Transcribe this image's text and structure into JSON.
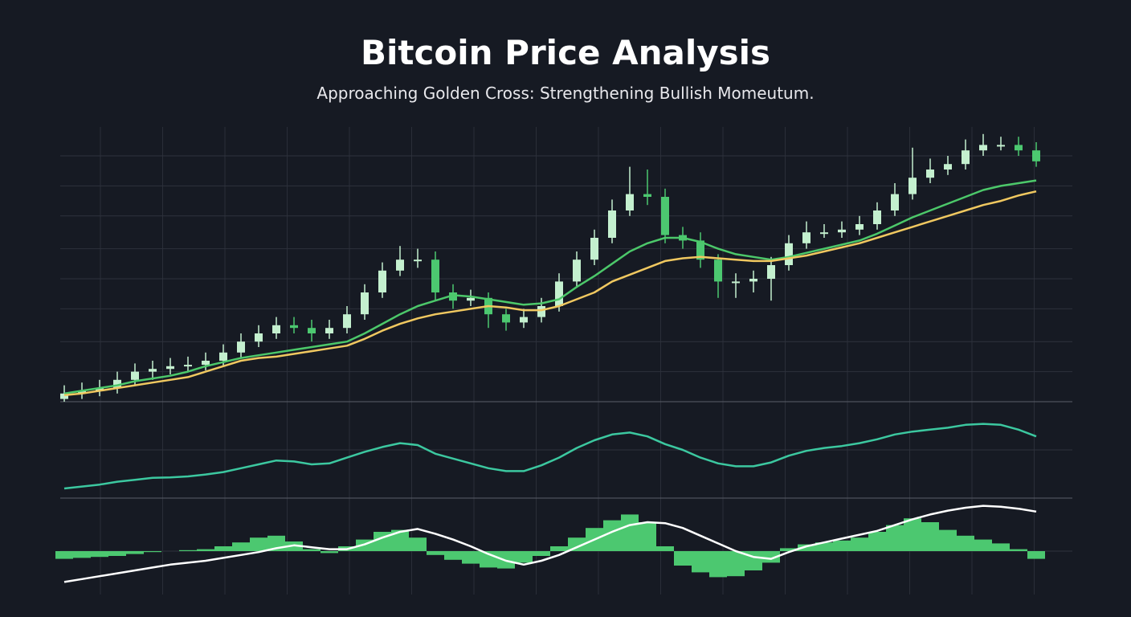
{
  "title": "Bitcoin Price Analysis",
  "subtitle": "Approaching Golden Cross: Strengthening Bullish Momeutum.",
  "chart_data": [
    {
      "type": "candlestick",
      "open": [
        1,
        3,
        4,
        5,
        8,
        11,
        12,
        13,
        13.5,
        15,
        18,
        22,
        25,
        28,
        27,
        25,
        27,
        32,
        40,
        48,
        52,
        52,
        40,
        37,
        38,
        32,
        29,
        31,
        35,
        44,
        52,
        60,
        70,
        76,
        75,
        61,
        59,
        52,
        44,
        44,
        45,
        50,
        58,
        62,
        62,
        63,
        65,
        70,
        76,
        82,
        85,
        87,
        92,
        94,
        94,
        92
      ],
      "high": [
        6,
        7,
        8,
        11,
        14,
        15,
        16,
        16.5,
        18,
        21,
        25,
        28,
        31,
        31,
        30,
        30,
        35,
        43,
        51,
        57,
        56,
        55,
        43,
        41,
        40,
        34,
        34,
        38,
        47,
        55,
        63,
        74,
        86,
        85,
        78,
        64,
        62,
        54,
        47,
        48,
        53,
        61,
        66,
        65,
        66,
        68,
        73,
        80,
        93,
        89,
        90,
        96,
        98,
        97,
        97,
        95
      ],
      "low": [
        0,
        1,
        2,
        3,
        6,
        8,
        10,
        11,
        11.5,
        13,
        16,
        20,
        23,
        25,
        22,
        23,
        25,
        30,
        38,
        46,
        49,
        37,
        34,
        35,
        27,
        26,
        27,
        29,
        33,
        42,
        50,
        58,
        68,
        72,
        58,
        56,
        49,
        38,
        38,
        40,
        37,
        48,
        56,
        60,
        60,
        61,
        63,
        68,
        74,
        80,
        83,
        85,
        90,
        92,
        90,
        86
      ],
      "close": [
        3,
        4,
        5,
        8,
        11,
        12,
        13,
        13.5,
        15,
        18,
        22,
        25,
        28,
        27,
        25,
        27,
        32,
        40,
        48,
        52,
        52,
        40,
        37,
        38,
        32,
        29,
        31,
        35,
        44,
        52,
        60,
        70,
        76,
        75,
        61,
        59,
        52,
        44,
        44,
        45,
        50,
        58,
        62,
        62,
        63,
        65,
        70,
        76,
        82,
        85,
        87,
        92,
        94,
        94,
        92,
        88
      ],
      "up_color": "#c4f0cf",
      "down_color": "#4cc870",
      "series": [
        {
          "color": "#4cc86a",
          "values": [
            3,
            4,
            5,
            6,
            7.5,
            8.5,
            9.5,
            11,
            13,
            14.5,
            16,
            17,
            18,
            19,
            20,
            21,
            22,
            25,
            28.5,
            32,
            35,
            37,
            39,
            38.5,
            37.5,
            36.5,
            35.5,
            36,
            37.5,
            42,
            46,
            50.5,
            55,
            58,
            60,
            60,
            58.5,
            56,
            54,
            53,
            52,
            53,
            54.5,
            56,
            57.5,
            59,
            61.5,
            64.5,
            67.5,
            70,
            72.5,
            75,
            77.5,
            79,
            80,
            81
          ]
        },
        {
          "color": "#f0c860",
          "values": [
            2.4,
            3,
            4,
            5,
            6,
            7,
            8,
            9,
            11,
            13,
            15,
            16,
            16.5,
            17.5,
            18.5,
            19.5,
            20.5,
            23,
            26,
            28.5,
            30.5,
            32,
            33,
            34,
            35,
            34.5,
            33.5,
            33.5,
            35,
            37.5,
            40,
            44,
            46.5,
            49,
            51.5,
            52.5,
            53,
            52.5,
            52,
            51.5,
            51.5,
            52.5,
            53.5,
            55,
            56.5,
            58,
            60,
            62,
            64,
            66,
            68,
            70,
            72,
            73.5,
            75.5,
            77
          ]
        }
      ],
      "ylim": [
        0,
        100
      ],
      "yticks": [
        11,
        22,
        34,
        45,
        56,
        68,
        79,
        90
      ],
      "grid": true
    },
    {
      "type": "line",
      "series": [
        {
          "color": "#3cc8a0",
          "values": [
            10,
            12,
            14,
            17,
            19,
            21,
            21.5,
            22.5,
            24.5,
            27,
            31,
            35,
            39,
            38,
            35,
            36,
            42,
            48,
            53,
            57,
            55,
            46,
            41,
            36,
            31,
            28,
            28,
            34,
            42,
            52,
            60,
            66,
            68,
            64,
            56,
            50,
            42,
            36,
            33,
            33,
            37,
            44,
            49,
            52,
            54,
            57,
            61,
            66,
            69,
            71,
            73,
            76,
            77,
            76,
            71,
            64
          ]
        }
      ],
      "ylim": [
        0,
        100
      ],
      "yticks": [
        50
      ],
      "grid": true
    },
    {
      "type": "macd",
      "values": [
        -8,
        -7,
        -6,
        -5,
        -3,
        -1,
        0,
        1,
        2,
        5,
        9,
        14,
        16,
        10,
        2,
        -2,
        5,
        12,
        20,
        22,
        14,
        -4,
        -9,
        -13,
        -17,
        -18,
        -12,
        -5,
        5,
        14,
        24,
        32,
        38,
        30,
        5,
        -15,
        -22,
        -27,
        -26,
        -20,
        -12,
        3,
        7,
        9,
        11,
        14,
        20,
        27,
        34,
        30,
        22,
        16,
        12,
        8,
        2,
        -8
      ],
      "color": "#4cc870",
      "series": [
        {
          "color": "#ffffff",
          "values": [
            -32,
            -29,
            -26,
            -23,
            -20,
            -17,
            -14,
            -12,
            -10,
            -7,
            -4,
            -1,
            3,
            6,
            4,
            2,
            2,
            7,
            14,
            20,
            23,
            18,
            12,
            5,
            -3,
            -10,
            -14,
            -10,
            -4,
            4,
            12,
            20,
            27,
            30,
            29,
            24,
            16,
            8,
            0,
            -6,
            -8,
            -1,
            5,
            9,
            13,
            17,
            21,
            27,
            33,
            38,
            42,
            45,
            47,
            46,
            44,
            41
          ]
        }
      ],
      "ylim": [
        -45,
        55
      ],
      "yticks": [
        0
      ],
      "grid": true
    }
  ]
}
